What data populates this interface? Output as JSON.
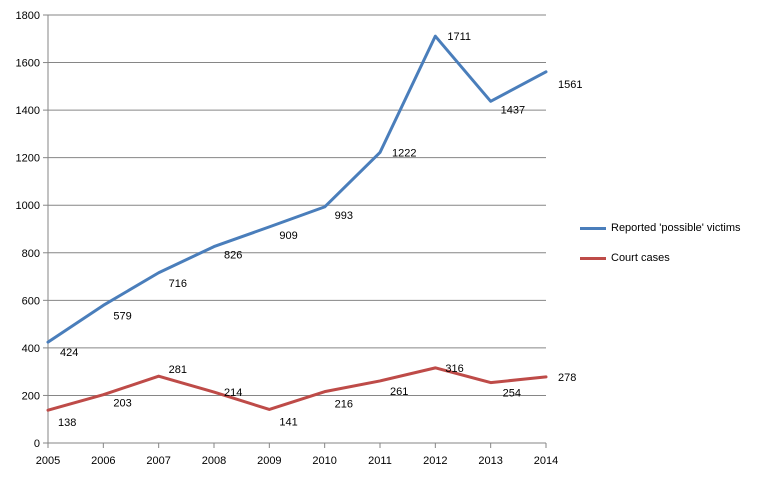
{
  "chart_data": {
    "type": "line",
    "x": [
      "2005",
      "2006",
      "2007",
      "2008",
      "2009",
      "2010",
      "2011",
      "2012",
      "2013",
      "2014"
    ],
    "ylim": [
      0,
      1800
    ],
    "yticks": [
      "0",
      "200",
      "400",
      "600",
      "800",
      "1000",
      "1200",
      "1400",
      "1600",
      "1800"
    ],
    "grid": true,
    "legend_position": "right",
    "series": [
      {
        "name": "Reported 'possible' victims",
        "color": "#4a7ebb",
        "values": [
          424,
          579,
          716,
          826,
          909,
          993,
          1222,
          1711,
          1437,
          1561
        ],
        "labels": [
          "424",
          "579",
          "716",
          "826",
          "909",
          "993",
          "1222",
          "1711",
          "1437",
          "1561"
        ]
      },
      {
        "name": "Court cases",
        "color": "#be4b48",
        "values": [
          138,
          203,
          281,
          214,
          141,
          216,
          261,
          316,
          254,
          278
        ],
        "labels": [
          "138",
          "203",
          "281",
          "214",
          "141",
          "216",
          "261",
          "316",
          "254",
          "278"
        ]
      }
    ]
  }
}
